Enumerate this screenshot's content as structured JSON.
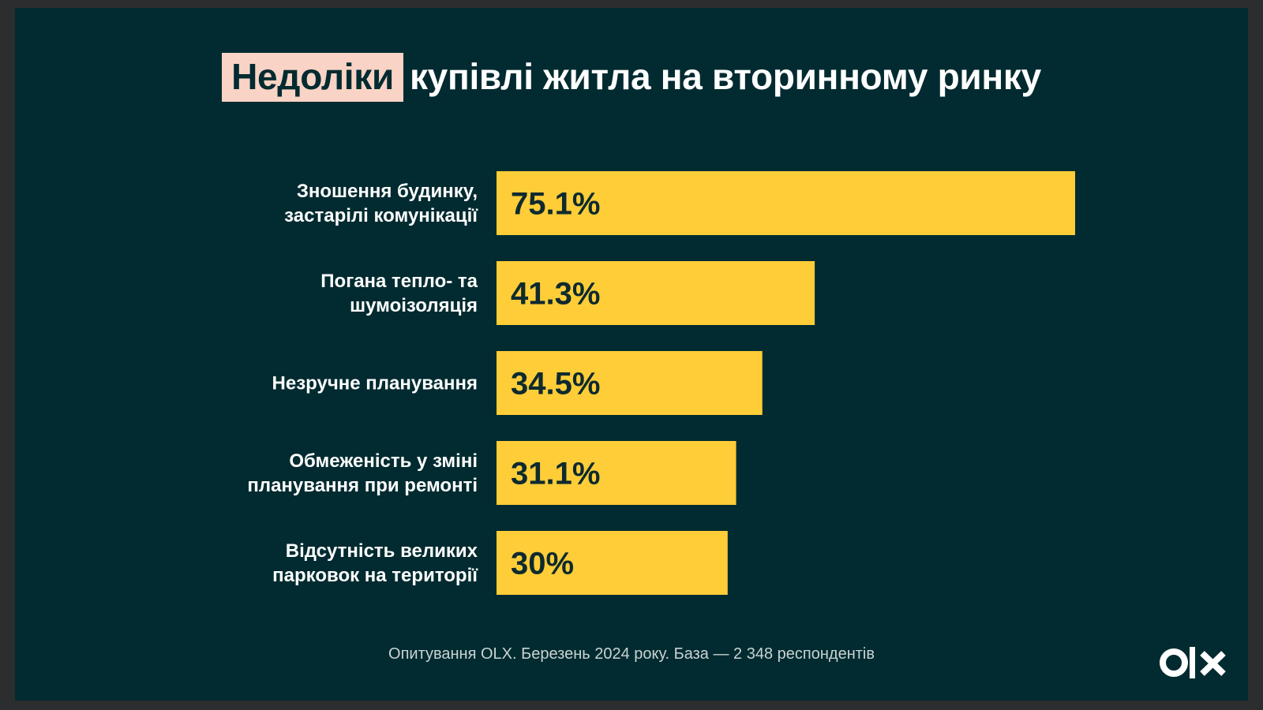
{
  "title": {
    "highlight": "Недоліки",
    "rest": "купівлі житла на вторинному ринку"
  },
  "colors": {
    "background": "#012b30",
    "bar": "#fecd38",
    "highlight": "#f9d3c5",
    "text": "#ffffff"
  },
  "chart_data": {
    "type": "bar",
    "orientation": "horizontal",
    "categories": [
      [
        "Зношення будинку,",
        "застарілі комунікації"
      ],
      [
        "Погана тепло- та",
        "шумоізоляція"
      ],
      [
        "Незручне планування"
      ],
      [
        "Обмеженість у зміні",
        "планування при ремонті"
      ],
      [
        "Відсутність великих",
        "парковок на території"
      ]
    ],
    "values": [
      75.1,
      41.3,
      34.5,
      31.1,
      30
    ],
    "value_labels": [
      "75.1%",
      "41.3%",
      "34.5%",
      "31.1%",
      "30%"
    ],
    "xlim": [
      0,
      75.1
    ],
    "grid": false,
    "legend": "none"
  },
  "footnote": "Опитування OLX. Березень 2024 року. База — 2 348 респондентів",
  "logo": {
    "text": "OLX",
    "icon": "olx-logo-icon"
  }
}
